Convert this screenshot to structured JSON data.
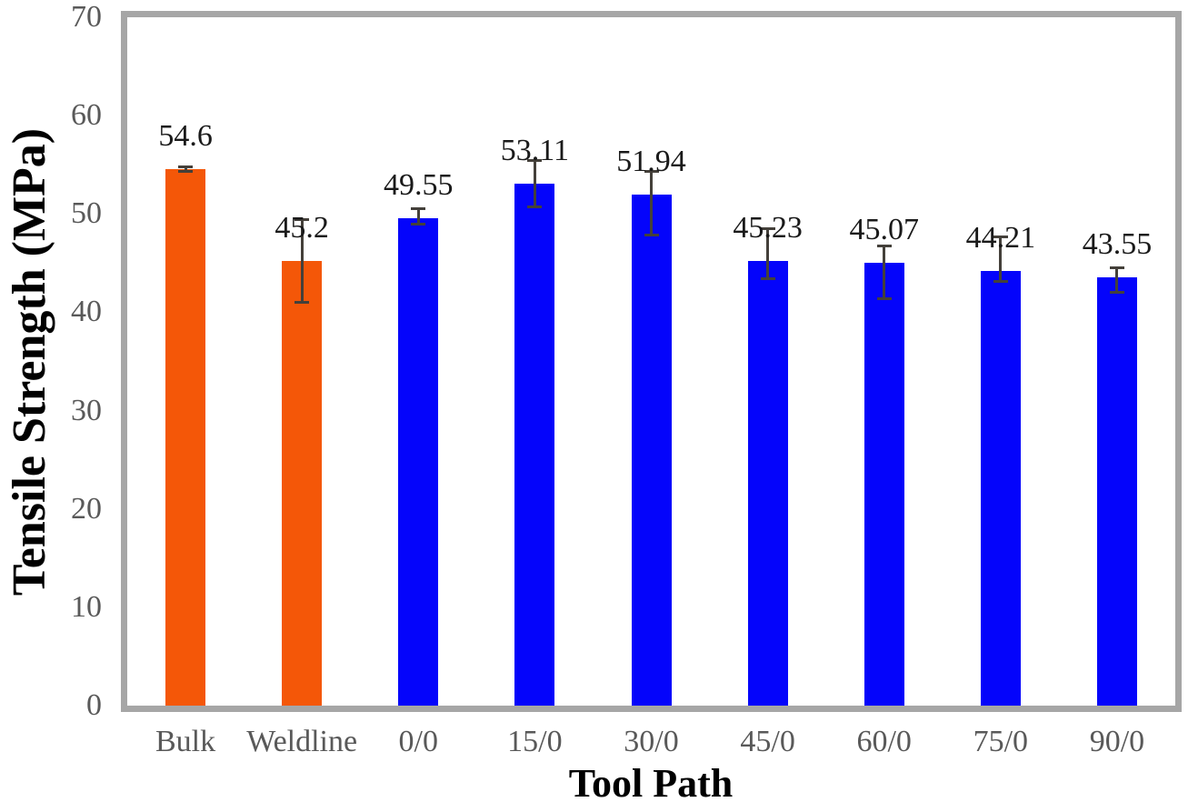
{
  "chart_data": {
    "type": "bar",
    "title": "",
    "xlabel": "Tool Path",
    "ylabel": "Tensile Strength (MPa)",
    "ylim": [
      0,
      70
    ],
    "yticks": [
      0,
      10,
      20,
      30,
      40,
      50,
      60,
      70
    ],
    "grid": false,
    "legend": "none",
    "categories": [
      "Bulk",
      "Weldline",
      "0/0",
      "15/0",
      "30/0",
      "45/0",
      "60/0",
      "75/0",
      "90/0"
    ],
    "values": [
      54.6,
      45.2,
      49.55,
      53.11,
      51.94,
      45.23,
      45.07,
      44.21,
      43.55
    ],
    "labels": [
      "54.6",
      "45.2",
      "49.55",
      "53.11",
      "51.94",
      "45.23",
      "45.07",
      "44.21",
      "43.55"
    ],
    "error_bars": [
      {
        "top": 54.95,
        "bottom": 54.2
      },
      {
        "top": 49.6,
        "bottom": 40.9
      },
      {
        "top": 50.7,
        "bottom": 48.8
      },
      {
        "top": 55.6,
        "bottom": 50.6
      },
      {
        "top": 54.5,
        "bottom": 47.7
      },
      {
        "top": 48.6,
        "bottom": 43.3
      },
      {
        "top": 46.9,
        "bottom": 41.2
      },
      {
        "top": 47.8,
        "bottom": 43.0
      },
      {
        "top": 44.7,
        "bottom": 41.9
      }
    ],
    "bar_colors": [
      "#F45708",
      "#F45708",
      "#0404FB",
      "#0404FB",
      "#0404FB",
      "#0404FB",
      "#0404FB",
      "#0404FB",
      "#0404FB"
    ],
    "colors": {
      "orange_bar": "#F45708",
      "blue_bar": "#0404FB",
      "plot_border": "#A6A6A6",
      "tick_text": "#595959",
      "label_text": "#1a1a1a",
      "axis_title_text": "#000000",
      "error_bar": "#44403A"
    }
  }
}
